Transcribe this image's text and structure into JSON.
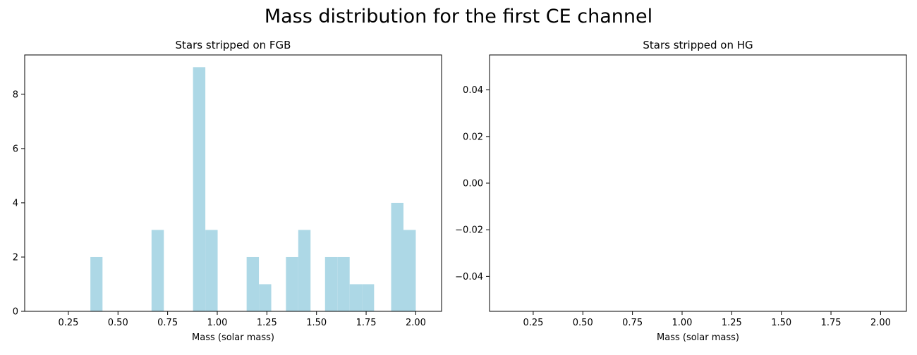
{
  "figure": {
    "title": "Mass distribution for the first CE channel"
  },
  "colors": {
    "bar": "#add8e6",
    "axis": "#000000",
    "background": "#ffffff"
  },
  "chart_data": [
    {
      "type": "bar",
      "title": "Stars stripped on FGB",
      "xlabel": "Mass (solar mass)",
      "ylabel": "",
      "grid": false,
      "bin_width": 0.0617,
      "xlim": [
        0.03,
        2.13
      ],
      "ylim": [
        0,
        9.45
      ],
      "xticks": [
        0.25,
        0.5,
        0.75,
        1.0,
        1.25,
        1.5,
        1.75,
        2.0
      ],
      "xtick_labels": [
        "0.25",
        "0.50",
        "0.75",
        "1.00",
        "1.25",
        "1.50",
        "1.75",
        "2.00"
      ],
      "yticks": [
        0,
        2,
        4,
        6,
        8
      ],
      "ytick_labels": [
        "0",
        "2",
        "4",
        "6",
        "8"
      ],
      "bins": [
        {
          "x0": 0.361,
          "x1": 0.422,
          "count": 2
        },
        {
          "x0": 0.669,
          "x1": 0.731,
          "count": 3
        },
        {
          "x0": 0.878,
          "x1": 0.94,
          "count": 9
        },
        {
          "x0": 0.94,
          "x1": 1.002,
          "count": 3
        },
        {
          "x0": 1.148,
          "x1": 1.21,
          "count": 2
        },
        {
          "x0": 1.21,
          "x1": 1.272,
          "count": 1
        },
        {
          "x0": 1.346,
          "x1": 1.408,
          "count": 2
        },
        {
          "x0": 1.408,
          "x1": 1.47,
          "count": 3
        },
        {
          "x0": 1.543,
          "x1": 1.605,
          "count": 2
        },
        {
          "x0": 1.605,
          "x1": 1.667,
          "count": 2
        },
        {
          "x0": 1.667,
          "x1": 1.729,
          "count": 1
        },
        {
          "x0": 1.729,
          "x1": 1.79,
          "count": 1
        },
        {
          "x0": 1.876,
          "x1": 1.938,
          "count": 4
        },
        {
          "x0": 1.938,
          "x1": 2.0,
          "count": 3
        }
      ]
    },
    {
      "type": "bar",
      "title": "Stars stripped on HG",
      "xlabel": "Mass (solar mass)",
      "ylabel": "",
      "grid": false,
      "xlim": [
        0.03,
        2.13
      ],
      "ylim": [
        -0.055,
        0.055
      ],
      "xticks": [
        0.25,
        0.5,
        0.75,
        1.0,
        1.25,
        1.5,
        1.75,
        2.0
      ],
      "xtick_labels": [
        "0.25",
        "0.50",
        "0.75",
        "1.00",
        "1.25",
        "1.50",
        "1.75",
        "2.00"
      ],
      "yticks": [
        -0.04,
        -0.02,
        0.0,
        0.02,
        0.04
      ],
      "ytick_labels": [
        "−0.04",
        "−0.02",
        "0.00",
        "0.02",
        "0.04"
      ],
      "bins": []
    }
  ]
}
